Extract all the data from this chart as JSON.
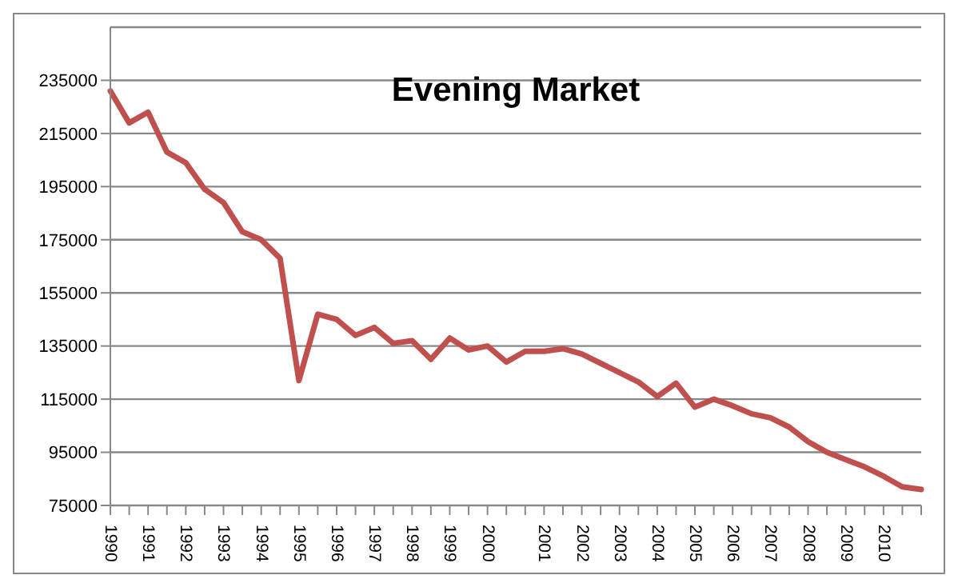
{
  "chart_data": {
    "type": "line",
    "title": "Evening Market",
    "categories": [
      "1990",
      null,
      "1991",
      null,
      "1992",
      null,
      "1993",
      null,
      "1994",
      null,
      "1995",
      null,
      "1996",
      null,
      "1997",
      null,
      "1998",
      null,
      "1999",
      null,
      "2000",
      null,
      null,
      "2001",
      null,
      "2002",
      null,
      "2003",
      null,
      "2004",
      null,
      "2005",
      null,
      "2006",
      null,
      "2007",
      null,
      "2008",
      null,
      "2009",
      null,
      "2010",
      null,
      null
    ],
    "series": [
      {
        "color": "#c0504d",
        "values": [
          231000,
          219000,
          223000,
          208000,
          204000,
          194000,
          189000,
          178000,
          175000,
          168000,
          122000,
          147000,
          145000,
          139000,
          142000,
          136000,
          137000,
          130000,
          138000,
          133500,
          135000,
          129000,
          133000,
          133000,
          134000,
          132000,
          128500,
          125000,
          121500,
          116000,
          121000,
          112000,
          115000,
          112500,
          109500,
          108000,
          104500,
          99000,
          95000,
          92200,
          89500,
          86000,
          82000,
          81000
        ]
      }
    ],
    "ylim": [
      75000,
      255000
    ],
    "yticks": [
      75000,
      95000,
      115000,
      135000,
      155000,
      175000,
      195000,
      215000,
      235000
    ],
    "grid": "y",
    "legend": false,
    "marker": "none",
    "line_style": "solid"
  }
}
